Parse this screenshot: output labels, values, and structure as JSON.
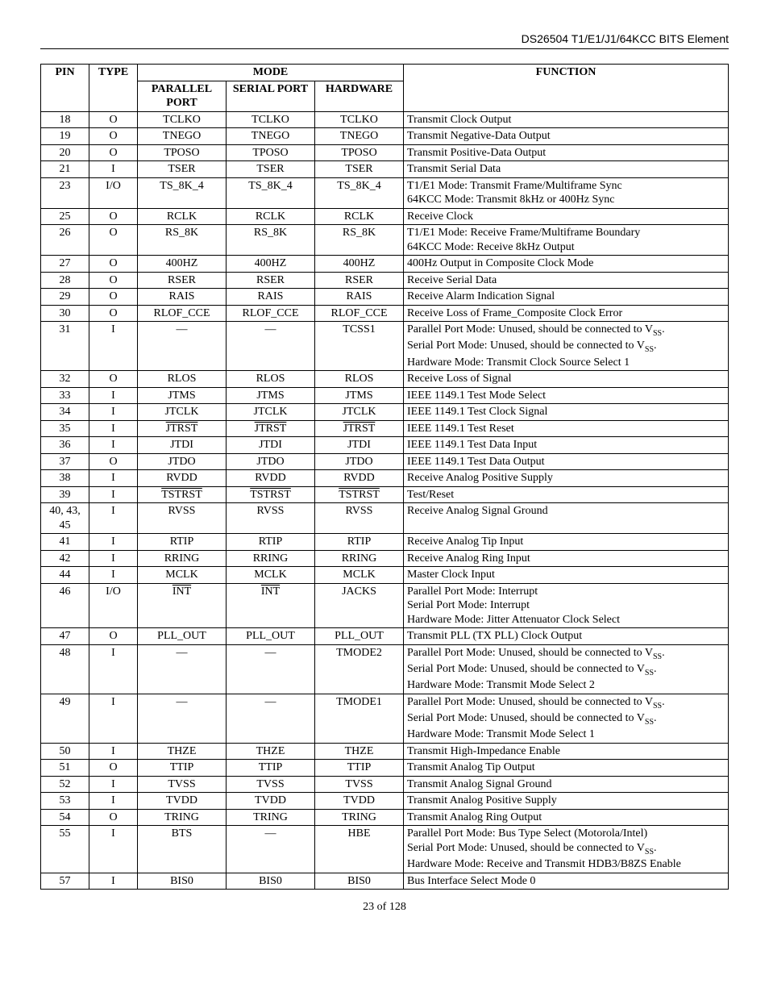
{
  "header": "DS26504 T1/E1/J1/64KCC BITS Element",
  "footer": "23 of 128",
  "columns": {
    "pin": "PIN",
    "type": "TYPE",
    "mode": "MODE",
    "parallel": "PARALLEL PORT",
    "serial": "SERIAL PORT",
    "hardware": "HARDWARE",
    "function": "FUNCTION"
  },
  "rows": [
    {
      "pin": "18",
      "type": "O",
      "pp": "TCLKO",
      "sp": "TCLKO",
      "hw": "TCLKO",
      "fn": "Transmit Clock Output"
    },
    {
      "pin": "19",
      "type": "O",
      "pp": "TNEGO",
      "sp": "TNEGO",
      "hw": "TNEGO",
      "fn": "Transmit Negative-Data Output"
    },
    {
      "pin": "20",
      "type": "O",
      "pp": "TPOSO",
      "sp": "TPOSO",
      "hw": "TPOSO",
      "fn": "Transmit Positive-Data Output"
    },
    {
      "pin": "21",
      "type": "I",
      "pp": "TSER",
      "sp": "TSER",
      "hw": "TSER",
      "fn": "Transmit Serial Data"
    },
    {
      "pin": "23",
      "type": "I/O",
      "pp": "TS_8K_4",
      "sp": "TS_8K_4",
      "hw": "TS_8K_4",
      "fn": "T1/E1 Mode: Transmit Frame/Multiframe Sync\n64KCC Mode: Transmit 8kHz or 400Hz Sync"
    },
    {
      "pin": "25",
      "type": "O",
      "pp": "RCLK",
      "sp": "RCLK",
      "hw": "RCLK",
      "fn": "Receive Clock"
    },
    {
      "pin": "26",
      "type": "O",
      "pp": "RS_8K",
      "sp": "RS_8K",
      "hw": "RS_8K",
      "fn": "T1/E1 Mode: Receive Frame/Multiframe Boundary\n64KCC Mode: Receive 8kHz Output"
    },
    {
      "pin": "27",
      "type": "O",
      "pp": "400HZ",
      "sp": "400HZ",
      "hw": "400HZ",
      "fn": "400Hz Output in Composite Clock Mode"
    },
    {
      "pin": "28",
      "type": "O",
      "pp": "RSER",
      "sp": "RSER",
      "hw": "RSER",
      "fn": "Receive Serial Data"
    },
    {
      "pin": "29",
      "type": "O",
      "pp": "RAIS",
      "sp": "RAIS",
      "hw": "RAIS",
      "fn": "Receive Alarm Indication Signal"
    },
    {
      "pin": "30",
      "type": "O",
      "pp": "RLOF_CCE",
      "sp": "RLOF_CCE",
      "hw": "RLOF_CCE",
      "fn": "Receive Loss of Frame_Composite Clock Error"
    },
    {
      "pin": "31",
      "type": "I",
      "pp": "—",
      "sp": "—",
      "hw": "TCSS1",
      "fn_html": "Parallel Port Mode: Unused, should be connected to V<span class=\"sub\">SS</span>.<br>Serial Port Mode: Unused, should be connected to V<span class=\"sub\">SS</span>.<br>Hardware Mode: Transmit Clock Source Select 1"
    },
    {
      "pin": "32",
      "type": "O",
      "pp": "RLOS",
      "sp": "RLOS",
      "hw": "RLOS",
      "fn": "Receive Loss of Signal"
    },
    {
      "pin": "33",
      "type": "I",
      "pp": "JTMS",
      "sp": "JTMS",
      "hw": "JTMS",
      "fn": "IEEE 1149.1 Test Mode Select"
    },
    {
      "pin": "34",
      "type": "I",
      "pp": "JTCLK",
      "sp": "JTCLK",
      "hw": "JTCLK",
      "fn": "IEEE 1149.1 Test Clock Signal"
    },
    {
      "pin": "35",
      "type": "I",
      "pp_html": "<span class=\"overline\">JTRST</span>",
      "sp_html": "<span class=\"overline\">JTRST</span>",
      "hw_html": "<span class=\"overline\">JTRST</span>",
      "fn": "IEEE 1149.1 Test Reset"
    },
    {
      "pin": "36",
      "type": "I",
      "pp": "JTDI",
      "sp": "JTDI",
      "hw": "JTDI",
      "fn": "IEEE 1149.1 Test Data Input"
    },
    {
      "pin": "37",
      "type": "O",
      "pp": "JTDO",
      "sp": "JTDO",
      "hw": "JTDO",
      "fn": "IEEE 1149.1 Test Data Output"
    },
    {
      "pin": "38",
      "type": "I",
      "pp": "RVDD",
      "sp": "RVDD",
      "hw": "RVDD",
      "fn": "Receive Analog Positive Supply"
    },
    {
      "pin": "39",
      "type": "I",
      "pp_html": "<span class=\"overline\">TSTRST</span>",
      "sp_html": "<span class=\"overline\">TSTRST</span>",
      "hw_html": "<span class=\"overline\">TSTRST</span>",
      "fn": "Test/Reset"
    },
    {
      "pin": "40, 43, 45",
      "type": "I",
      "pp": "RVSS",
      "sp": "RVSS",
      "hw": "RVSS",
      "fn": "Receive Analog Signal Ground"
    },
    {
      "pin": "41",
      "type": "I",
      "pp": "RTIP",
      "sp": "RTIP",
      "hw": "RTIP",
      "fn": "Receive Analog Tip Input"
    },
    {
      "pin": "42",
      "type": "I",
      "pp": "RRING",
      "sp": "RRING",
      "hw": "RRING",
      "fn": "Receive Analog Ring Input"
    },
    {
      "pin": "44",
      "type": "I",
      "pp": "MCLK",
      "sp": "MCLK",
      "hw": "MCLK",
      "fn": "Master Clock Input"
    },
    {
      "pin": "46",
      "type": "I/O",
      "pp_html": "<span class=\"overline\">INT</span>",
      "sp_html": "<span class=\"overline\">INT</span>",
      "hw": "JACKS",
      "fn": "Parallel Port Mode: Interrupt\nSerial Port Mode: Interrupt\nHardware Mode: Jitter Attenuator Clock Select"
    },
    {
      "pin": "47",
      "type": "O",
      "pp": "PLL_OUT",
      "sp": "PLL_OUT",
      "hw": "PLL_OUT",
      "fn": "Transmit PLL (TX PLL) Clock Output"
    },
    {
      "pin": "48",
      "type": "I",
      "pp": "—",
      "sp": "—",
      "hw": "TMODE2",
      "fn_html": "Parallel Port Mode: Unused, should be connected to V<span class=\"sub\">SS</span>.<br>Serial Port Mode: Unused, should be connected to V<span class=\"sub\">SS</span>.<br>Hardware Mode: Transmit Mode Select 2"
    },
    {
      "pin": "49",
      "type": "I",
      "pp": "—",
      "sp": "—",
      "hw": "TMODE1",
      "fn_html": "Parallel Port Mode: Unused, should be connected to V<span class=\"sub\">SS</span>.<br>Serial Port Mode: Unused, should be connected to V<span class=\"sub\">SS</span>.<br>Hardware Mode: Transmit Mode Select 1"
    },
    {
      "pin": "50",
      "type": "I",
      "pp": "THZE",
      "sp": "THZE",
      "hw": "THZE",
      "fn": "Transmit High-Impedance Enable"
    },
    {
      "pin": "51",
      "type": "O",
      "pp": "TTIP",
      "sp": "TTIP",
      "hw": "TTIP",
      "fn": "Transmit Analog Tip Output"
    },
    {
      "pin": "52",
      "type": "I",
      "pp": "TVSS",
      "sp": "TVSS",
      "hw": "TVSS",
      "fn": "Transmit Analog Signal Ground"
    },
    {
      "pin": "53",
      "type": "I",
      "pp": "TVDD",
      "sp": "TVDD",
      "hw": "TVDD",
      "fn": "Transmit Analog Positive Supply"
    },
    {
      "pin": "54",
      "type": "O",
      "pp": "TRING",
      "sp": "TRING",
      "hw": "TRING",
      "fn": "Transmit Analog Ring Output"
    },
    {
      "pin": "55",
      "type": "I",
      "pp": "BTS",
      "sp": "—",
      "hw": "HBE",
      "fn_html": "Parallel Port Mode: Bus Type Select (Motorola/Intel)<br>Serial Port Mode: Unused, should be connected to V<span class=\"sub\">SS</span>.<br>Hardware Mode: Receive and Transmit HDB3/B8ZS Enable"
    },
    {
      "pin": "57",
      "type": "I",
      "pp": "BIS0",
      "sp": "BIS0",
      "hw": "BIS0",
      "fn": "Bus Interface Select Mode 0"
    }
  ]
}
